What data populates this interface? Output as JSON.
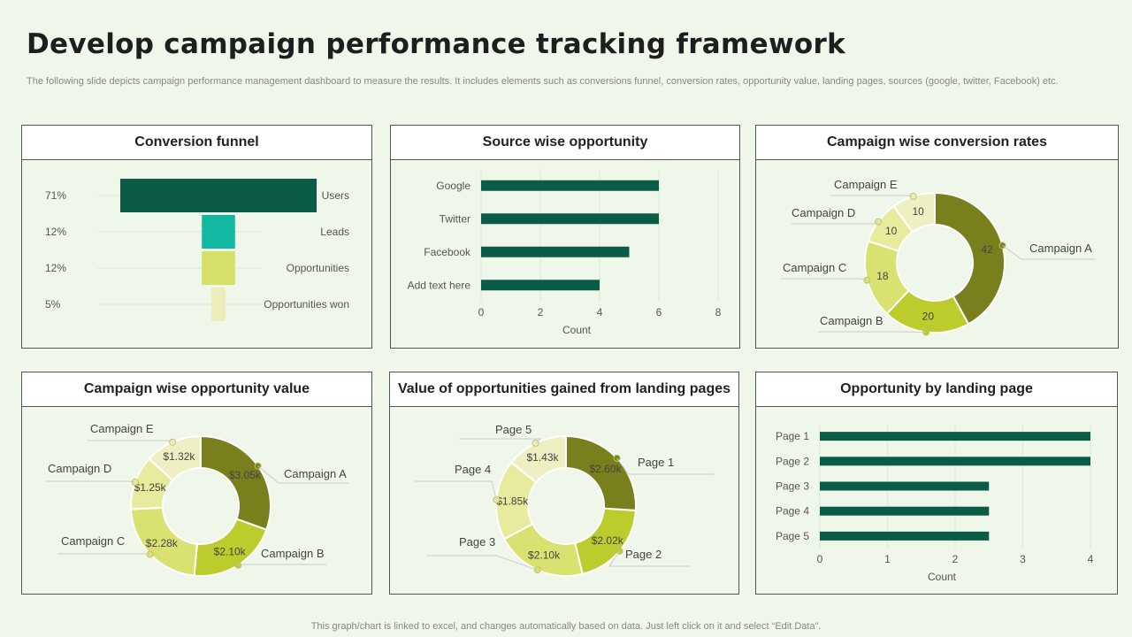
{
  "header": {
    "title": "Develop campaign performance tracking framework",
    "subtitle": "The following slide depicts campaign performance management dashboard to measure the results. It includes elements such as conversions funnel, conversion rates, opportunity value, landing pages, sources (google, twitter, Facebook) etc."
  },
  "footer": {
    "text": "This graph/chart is linked to excel,  and changes automatically based on data. Just left click on it and select “Edit Data”."
  },
  "panels": {
    "funnel": {
      "title": "Conversion funnel"
    },
    "source": {
      "title": "Source wise opportunity"
    },
    "conv_rates": {
      "title": "Campaign wise conversion rates"
    },
    "opp_value": {
      "title": "Campaign wise opportunity value"
    },
    "landing_value": {
      "title": "Value of opportunities gained from landing pages"
    },
    "landing_opp": {
      "title": "Opportunity by landing page"
    }
  },
  "chart_data": [
    {
      "id": "funnel",
      "type": "bar",
      "title": "Conversion funnel",
      "categories": [
        "Users",
        "Leads",
        "Opportunities",
        "Opportunities won"
      ],
      "values": [
        71,
        12,
        12,
        5
      ],
      "value_labels": [
        "71%",
        "12%",
        "12%",
        "5%"
      ],
      "colors": [
        "#0b5c46",
        "#12b8a0",
        "#d6df68",
        "#ecedb8"
      ]
    },
    {
      "id": "source",
      "type": "bar",
      "title": "Source wise opportunity",
      "orientation": "horizontal",
      "categories": [
        "Google",
        "Twitter",
        "Facebook",
        "Add text here"
      ],
      "values": [
        6,
        6,
        5,
        4
      ],
      "xlabel": "Count",
      "xlim": [
        0,
        8
      ],
      "xticks": [
        "0",
        "2",
        "4",
        "6",
        "8"
      ],
      "color": "#0b5c46"
    },
    {
      "id": "conv_rates",
      "type": "pie",
      "title": "Campaign wise conversion rates",
      "categories": [
        "Campaign A",
        "Campaign B",
        "Campaign C",
        "Campaign D",
        "Campaign E"
      ],
      "values": [
        42,
        20,
        18,
        10,
        10
      ],
      "value_labels": [
        "42",
        "20",
        "18",
        "10",
        "10"
      ],
      "colors": [
        "#7a7f1e",
        "#bccc2c",
        "#d9e270",
        "#e8ea9d",
        "#efefc4"
      ]
    },
    {
      "id": "opp_value",
      "type": "pie",
      "title": "Campaign wise opportunity value",
      "categories": [
        "Campaign A",
        "Campaign B",
        "Campaign C",
        "Campaign D",
        "Campaign E"
      ],
      "values": [
        3.05,
        2.1,
        2.28,
        1.25,
        1.32
      ],
      "value_labels": [
        "$3.05k",
        "$2.10k",
        "$2.28k",
        "$1.25k",
        "$1.32k"
      ],
      "colors": [
        "#7a7f1e",
        "#bccc2c",
        "#d9e270",
        "#e8ea9d",
        "#efefc4"
      ]
    },
    {
      "id": "landing_value",
      "type": "pie",
      "title": "Value of opportunities gained from landing pages",
      "categories": [
        "Page 1",
        "Page 2",
        "Page 3",
        "Page 4",
        "Page 5"
      ],
      "values": [
        2.6,
        2.02,
        2.1,
        1.85,
        1.43
      ],
      "value_labels": [
        "$2.60k",
        "$2.02k",
        "$2.10k",
        "$1.85k",
        "$1.43k"
      ],
      "colors": [
        "#7a7f1e",
        "#bccc2c",
        "#d9e270",
        "#e8ea9d",
        "#efefc4"
      ]
    },
    {
      "id": "landing_opp",
      "type": "bar",
      "title": "Opportunity by landing page",
      "orientation": "horizontal",
      "categories": [
        "Page 1",
        "Page 2",
        "Page 3",
        "Page 4",
        "Page 5"
      ],
      "values": [
        4,
        4,
        2.5,
        2.5,
        2.5
      ],
      "xlabel": "Count",
      "xlim": [
        0,
        4
      ],
      "xticks": [
        "0",
        "1",
        "2",
        "3",
        "4"
      ],
      "color": "#0b5c46"
    }
  ]
}
